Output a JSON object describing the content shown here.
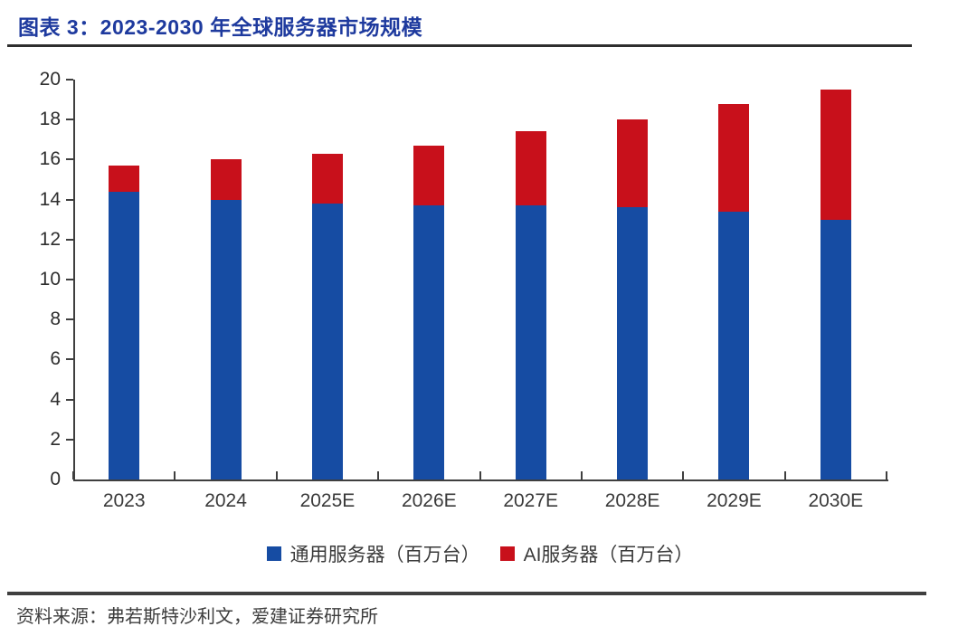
{
  "header": {
    "title": "图表 3：2023-2030 年全球服务器市场规模"
  },
  "footer": {
    "source": "资料来源：弗若斯特沙利文，爱建证券研究所"
  },
  "colors": {
    "title_blue": "#1E3A9E",
    "general_server_blue": "#164CA3",
    "ai_server_red": "#C8101B",
    "axis_gray": "#3F3F3F",
    "divider_dark": "#2E2E2E",
    "label_gray": "#3A3A3A"
  },
  "chart_data": {
    "type": "bar",
    "stacked": true,
    "title": "2023-2030 年全球服务器市场规模",
    "unit": "百万台",
    "categories": [
      "2023",
      "2024",
      "2025E",
      "2026E",
      "2027E",
      "2028E",
      "2029E",
      "2030E"
    ],
    "series": [
      {
        "name": "通用服务器（百万台）",
        "color": "#164CA3",
        "values": [
          14.4,
          14.0,
          13.8,
          13.7,
          13.7,
          13.6,
          13.4,
          13.0
        ]
      },
      {
        "name": "AI服务器（百万台）",
        "color": "#C8101B",
        "values": [
          1.3,
          2.0,
          2.5,
          3.0,
          3.7,
          4.4,
          5.4,
          6.5
        ]
      }
    ],
    "totals": [
      15.7,
      16.0,
      16.3,
      16.7,
      17.4,
      18.0,
      18.8,
      19.5
    ],
    "ylim": [
      0,
      20
    ],
    "ytick_step": 2,
    "yticks": [
      0,
      2,
      4,
      6,
      8,
      10,
      12,
      14,
      16,
      18,
      20
    ],
    "grid": false,
    "legend_position": "bottom",
    "xlabel": "",
    "ylabel": ""
  }
}
